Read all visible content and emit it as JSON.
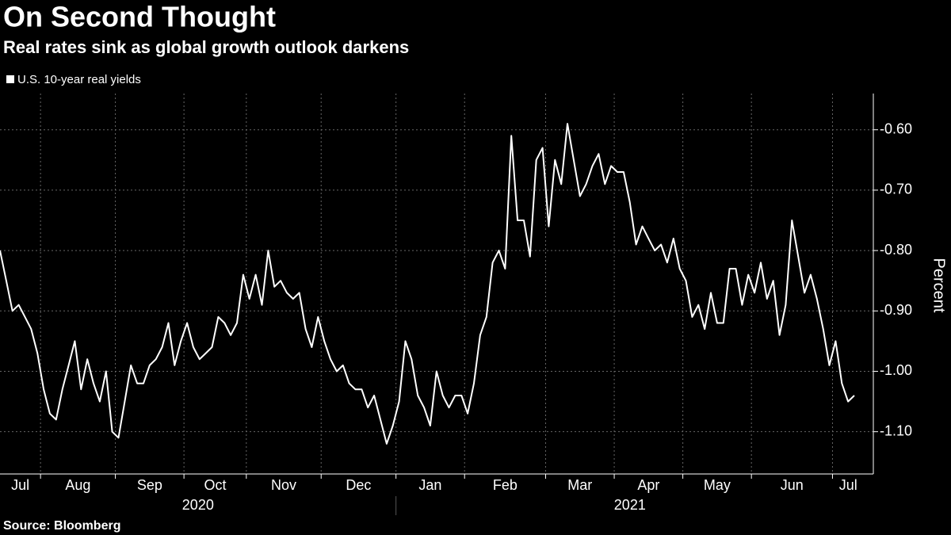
{
  "chart_data": {
    "type": "line",
    "title": "On Second Thought",
    "subtitle": "Real rates sink as global growth outlook darkens",
    "source": "Source: Bloomberg",
    "y_label": "Percent",
    "years": [
      "2020",
      "2021"
    ],
    "categories": [
      "Jul",
      null,
      null,
      null,
      null,
      null,
      null,
      "Aug",
      null,
      null,
      null,
      null,
      null,
      null,
      null,
      null,
      null,
      null,
      null,
      "Sep",
      null,
      null,
      null,
      null,
      null,
      null,
      null,
      null,
      null,
      null,
      "Oct",
      null,
      null,
      null,
      null,
      null,
      null,
      null,
      null,
      null,
      "Nov",
      null,
      null,
      null,
      null,
      null,
      null,
      null,
      null,
      null,
      null,
      null,
      "Dec",
      null,
      null,
      null,
      null,
      null,
      null,
      null,
      null,
      null,
      null,
      null,
      "Jan",
      null,
      null,
      null,
      null,
      null,
      null,
      null,
      null,
      null,
      null,
      "Feb",
      null,
      null,
      null,
      null,
      null,
      null,
      null,
      null,
      null,
      null,
      null,
      null,
      "Mar",
      null,
      null,
      null,
      null,
      null,
      null,
      null,
      null,
      null,
      null,
      "Apr",
      null,
      null,
      null,
      null,
      null,
      null,
      null,
      null,
      null,
      null,
      "May",
      null,
      null,
      null,
      null,
      null,
      null,
      null,
      null,
      null,
      null,
      "Jun",
      null,
      null,
      null,
      null,
      null,
      null,
      null,
      null,
      null,
      null,
      null,
      null,
      "Jul",
      null,
      null,
      null
    ],
    "series": [
      {
        "name": "U.S. 10-year real yields",
        "color": "#ffffff",
        "values": [
          -0.8,
          -0.85,
          -0.9,
          -0.89,
          -0.91,
          -0.93,
          -0.97,
          -1.03,
          -1.07,
          -1.08,
          -1.03,
          -0.99,
          -0.95,
          -1.03,
          -0.98,
          -1.02,
          -1.05,
          -1.0,
          -1.1,
          -1.11,
          -1.05,
          -0.99,
          -1.02,
          -1.02,
          -0.99,
          -0.98,
          -0.96,
          -0.92,
          -0.99,
          -0.95,
          -0.92,
          -0.96,
          -0.98,
          -0.97,
          -0.96,
          -0.91,
          -0.92,
          -0.94,
          -0.92,
          -0.84,
          -0.88,
          -0.84,
          -0.89,
          -0.8,
          -0.86,
          -0.85,
          -0.87,
          -0.88,
          -0.87,
          -0.93,
          -0.96,
          -0.91,
          -0.95,
          -0.98,
          -1.0,
          -0.99,
          -1.02,
          -1.03,
          -1.03,
          -1.06,
          -1.04,
          -1.08,
          -1.12,
          -1.09,
          -1.05,
          -0.95,
          -0.98,
          -1.04,
          -1.06,
          -1.09,
          -1.0,
          -1.04,
          -1.06,
          -1.04,
          -1.04,
          -1.07,
          -1.02,
          -0.94,
          -0.91,
          -0.82,
          -0.8,
          -0.83,
          -0.61,
          -0.75,
          -0.75,
          -0.81,
          -0.65,
          -0.63,
          -0.76,
          -0.65,
          -0.69,
          -0.59,
          -0.65,
          -0.71,
          -0.69,
          -0.66,
          -0.64,
          -0.69,
          -0.66,
          -0.67,
          -0.67,
          -0.72,
          -0.79,
          -0.76,
          -0.78,
          -0.8,
          -0.79,
          -0.82,
          -0.78,
          -0.83,
          -0.85,
          -0.91,
          -0.89,
          -0.93,
          -0.87,
          -0.92,
          -0.92,
          -0.83,
          -0.83,
          -0.89,
          -0.84,
          -0.87,
          -0.82,
          -0.88,
          -0.85,
          -0.94,
          -0.89,
          -0.75,
          -0.81,
          -0.87,
          -0.84,
          -0.88,
          -0.93,
          -0.99,
          -0.95,
          -1.02,
          -1.05,
          -1.04
        ]
      }
    ],
    "ylim": [
      -1.17,
      -0.54
    ],
    "yticks": [
      {
        "value": -0.6,
        "label": "-0.60"
      },
      {
        "value": -0.7,
        "label": "-0.70"
      },
      {
        "value": -0.8,
        "label": "-0.80"
      },
      {
        "value": -0.9,
        "label": "-0.90"
      },
      {
        "value": -1.0,
        "label": "-1.00"
      },
      {
        "value": -1.1,
        "label": "-1.10"
      }
    ],
    "grid": true
  }
}
